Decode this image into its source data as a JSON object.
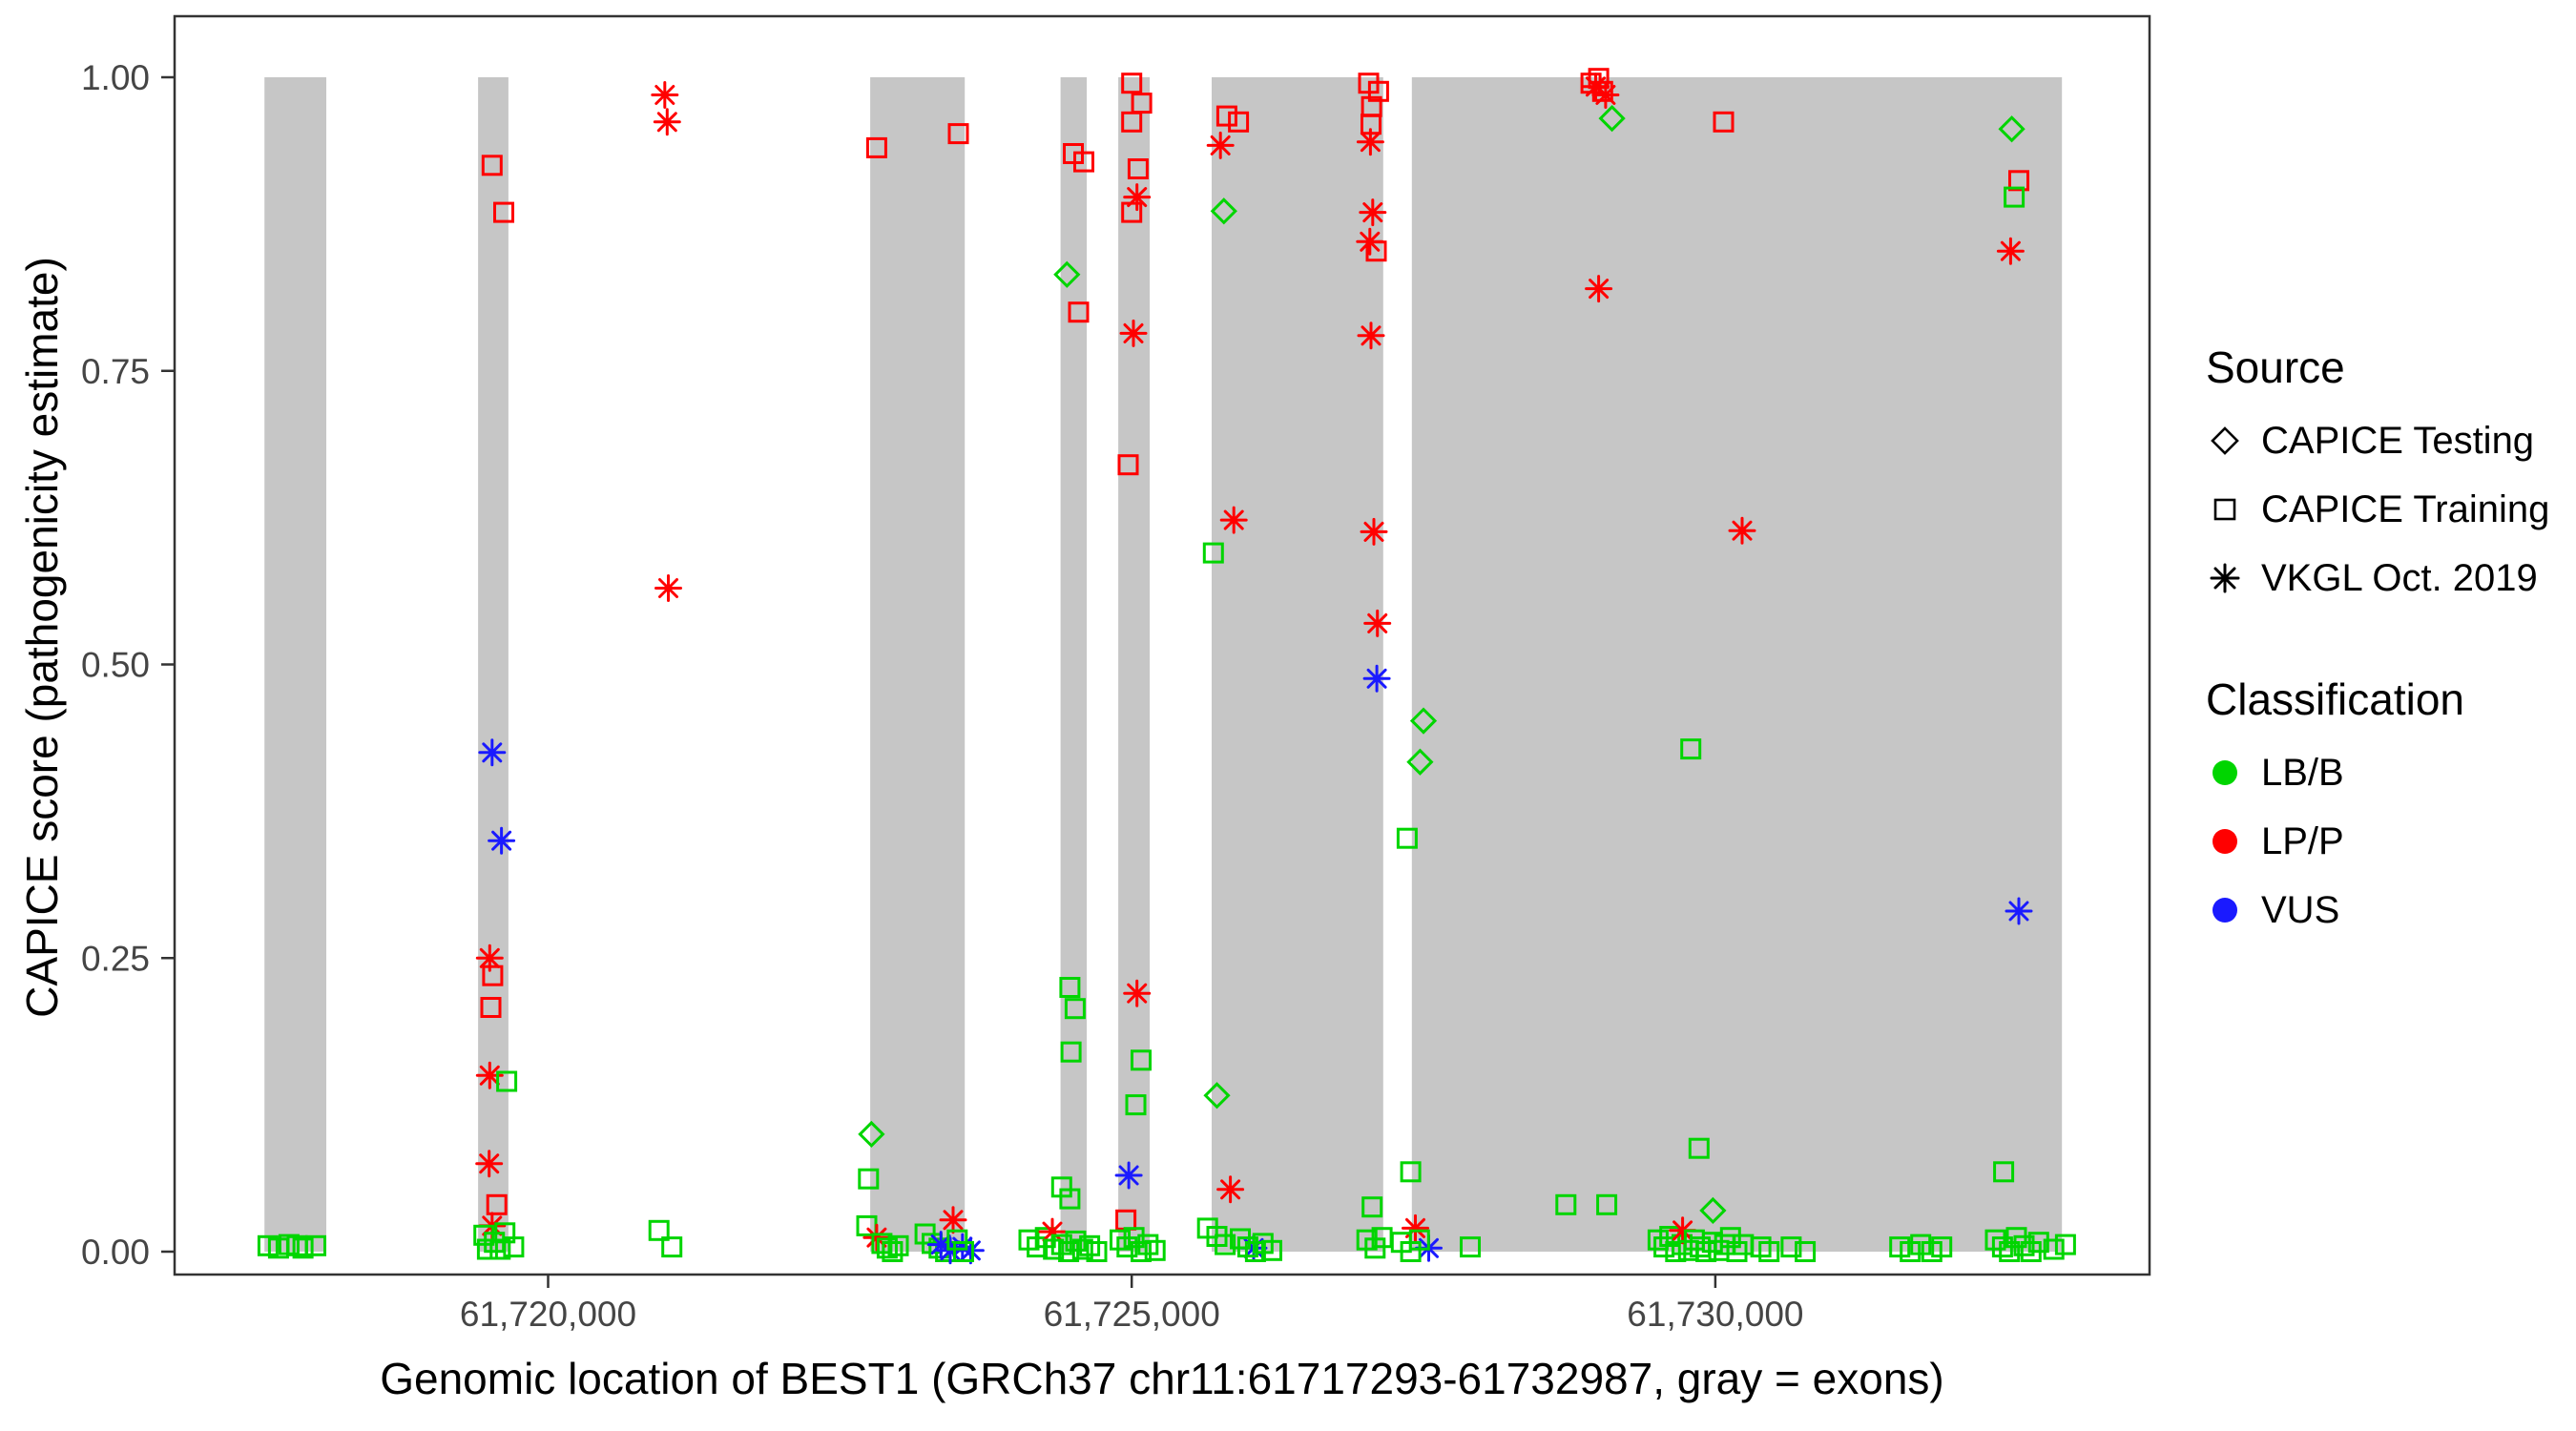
{
  "chart_data": {
    "type": "scatter",
    "title": "",
    "xlabel": "Genomic location of BEST1 (GRCh37 chr11:61717293-61732987, gray = exons)",
    "ylabel": "CAPICE score (pathogenicity estimate)",
    "x_domain": [
      61716800,
      61733720
    ],
    "y_domain": [
      0,
      1
    ],
    "grid": "off",
    "legend_position": "right",
    "legend_titles": {
      "source": "Source",
      "classification": "Classification"
    },
    "shape_legend": {
      "d": "CAPICE Testing",
      "s": "CAPICE Training",
      "a": "VKGL Oct. 2019"
    },
    "classes": {
      "g": {
        "label": "LB/B",
        "color": "#00D500"
      },
      "r": {
        "label": "LP/P",
        "color": "#FF0000"
      },
      "b": {
        "label": "VUS",
        "color": "#1A1AFF"
      }
    },
    "exon_color": "#C6C6C6",
    "exons": [
      [
        61717570,
        61718100
      ],
      [
        61719400,
        61719660
      ],
      [
        61722760,
        61723570
      ],
      [
        61724390,
        61724615
      ],
      [
        61724885,
        61725155
      ],
      [
        61725685,
        61727155
      ],
      [
        61727400,
        61732970
      ]
    ],
    "x_ticks": [
      {
        "value": 61720000,
        "label": "61,720,000"
      },
      {
        "value": 61725000,
        "label": "61,725,000"
      },
      {
        "value": 61730000,
        "label": "61,730,000"
      }
    ],
    "y_ticks": [
      {
        "value": 0.0,
        "label": "0.00"
      },
      {
        "value": 0.25,
        "label": "0.25"
      },
      {
        "value": 0.5,
        "label": "0.50"
      },
      {
        "value": 0.75,
        "label": "0.75"
      },
      {
        "value": 1.0,
        "label": "1.00"
      }
    ],
    "points_format": [
      "genomic_position",
      "capice_score",
      "shape s=square/Training d=diamond/Testing a=asterisk/VKGL",
      "class g=LB/B r=LP/P b=VUS"
    ],
    "points": [
      [
        61717600,
        0.005,
        "s",
        "g"
      ],
      [
        61717690,
        0.003,
        "s",
        "g"
      ],
      [
        61717780,
        0.006,
        "s",
        "g"
      ],
      [
        61717850,
        0.005,
        "s",
        "g"
      ],
      [
        61717900,
        0.003,
        "s",
        "g"
      ],
      [
        61718010,
        0.005,
        "s",
        "g"
      ],
      [
        61719520,
        0.925,
        "s",
        "r"
      ],
      [
        61719620,
        0.885,
        "s",
        "r"
      ],
      [
        61719520,
        0.425,
        "a",
        "b"
      ],
      [
        61719600,
        0.35,
        "a",
        "b"
      ],
      [
        61719500,
        0.25,
        "a",
        "r"
      ],
      [
        61719525,
        0.235,
        "s",
        "r"
      ],
      [
        61719510,
        0.208,
        "s",
        "r"
      ],
      [
        61719500,
        0.15,
        "a",
        "r"
      ],
      [
        61719645,
        0.145,
        "s",
        "g"
      ],
      [
        61719495,
        0.075,
        "a",
        "r"
      ],
      [
        61719560,
        0.04,
        "s",
        "r"
      ],
      [
        61719520,
        0.022,
        "a",
        "r"
      ],
      [
        61719450,
        0.014,
        "s",
        "g"
      ],
      [
        61719540,
        0.008,
        "s",
        "g"
      ],
      [
        61719630,
        0.016,
        "s",
        "g"
      ],
      [
        61719705,
        0.004,
        "s",
        "g"
      ],
      [
        61719480,
        0.002,
        "s",
        "g"
      ],
      [
        61719590,
        0.002,
        "s",
        "g"
      ],
      [
        61721000,
        0.985,
        "a",
        "r"
      ],
      [
        61721020,
        0.962,
        "a",
        "r"
      ],
      [
        61721030,
        0.565,
        "a",
        "r"
      ],
      [
        61720950,
        0.018,
        "s",
        "g"
      ],
      [
        61721060,
        0.004,
        "s",
        "g"
      ],
      [
        61722815,
        0.94,
        "s",
        "r"
      ],
      [
        61723515,
        0.952,
        "s",
        "r"
      ],
      [
        61722770,
        0.1,
        "d",
        "g"
      ],
      [
        61722745,
        0.062,
        "s",
        "g"
      ],
      [
        61722730,
        0.022,
        "s",
        "g"
      ],
      [
        61722815,
        0.012,
        "a",
        "r"
      ],
      [
        61722860,
        0.007,
        "s",
        "g"
      ],
      [
        61722905,
        0.003,
        "s",
        "g"
      ],
      [
        61722950,
        0.0,
        "s",
        "g"
      ],
      [
        61723000,
        0.005,
        "s",
        "g"
      ],
      [
        61723230,
        0.015,
        "s",
        "g"
      ],
      [
        61723290,
        0.007,
        "s",
        "g"
      ],
      [
        61723350,
        0.003,
        "s",
        "g"
      ],
      [
        61723405,
        0.0,
        "s",
        "g"
      ],
      [
        61723470,
        0.027,
        "a",
        "r"
      ],
      [
        61723365,
        0.006,
        "a",
        "b"
      ],
      [
        61723445,
        0.001,
        "a",
        "b"
      ],
      [
        61723550,
        0.004,
        "a",
        "b"
      ],
      [
        61723620,
        0.001,
        "a",
        "b"
      ],
      [
        61723505,
        0.01,
        "s",
        "g"
      ],
      [
        61723560,
        0.0,
        "s",
        "g"
      ],
      [
        61724500,
        0.935,
        "s",
        "r"
      ],
      [
        61724590,
        0.928,
        "s",
        "r"
      ],
      [
        61724445,
        0.832,
        "d",
        "g"
      ],
      [
        61724545,
        0.8,
        "s",
        "r"
      ],
      [
        61724470,
        0.225,
        "s",
        "g"
      ],
      [
        61724515,
        0.207,
        "s",
        "g"
      ],
      [
        61724480,
        0.17,
        "s",
        "g"
      ],
      [
        61724400,
        0.055,
        "s",
        "g"
      ],
      [
        61724470,
        0.045,
        "s",
        "g"
      ],
      [
        61724120,
        0.01,
        "s",
        "g"
      ],
      [
        61724190,
        0.004,
        "s",
        "g"
      ],
      [
        61724260,
        0.012,
        "s",
        "g"
      ],
      [
        61724320,
        0.017,
        "a",
        "r"
      ],
      [
        61724330,
        0.002,
        "s",
        "g"
      ],
      [
        61724400,
        0.006,
        "s",
        "g"
      ],
      [
        61724460,
        0.0,
        "s",
        "g"
      ],
      [
        61724520,
        0.009,
        "s",
        "g"
      ],
      [
        61724580,
        0.002,
        "s",
        "g"
      ],
      [
        61724640,
        0.005,
        "s",
        "g"
      ],
      [
        61724700,
        0.0,
        "s",
        "g"
      ],
      [
        61725000,
        0.995,
        "s",
        "r"
      ],
      [
        61725085,
        0.978,
        "s",
        "r"
      ],
      [
        61725000,
        0.962,
        "s",
        "r"
      ],
      [
        61725055,
        0.922,
        "s",
        "r"
      ],
      [
        61725045,
        0.898,
        "a",
        "r"
      ],
      [
        61725000,
        0.885,
        "s",
        "r"
      ],
      [
        61725015,
        0.782,
        "a",
        "r"
      ],
      [
        61724970,
        0.67,
        "s",
        "r"
      ],
      [
        61725045,
        0.22,
        "a",
        "r"
      ],
      [
        61725080,
        0.163,
        "s",
        "g"
      ],
      [
        61725035,
        0.125,
        "s",
        "g"
      ],
      [
        61724975,
        0.065,
        "a",
        "b"
      ],
      [
        61724950,
        0.027,
        "s",
        "r"
      ],
      [
        61724900,
        0.01,
        "s",
        "g"
      ],
      [
        61724960,
        0.004,
        "s",
        "g"
      ],
      [
        61725020,
        0.012,
        "s",
        "g"
      ],
      [
        61725080,
        0.0,
        "s",
        "g"
      ],
      [
        61725140,
        0.006,
        "s",
        "g"
      ],
      [
        61725200,
        0.001,
        "s",
        "g"
      ],
      [
        61725815,
        0.967,
        "s",
        "r"
      ],
      [
        61725915,
        0.962,
        "s",
        "r"
      ],
      [
        61725760,
        0.942,
        "a",
        "r"
      ],
      [
        61725790,
        0.886,
        "d",
        "g"
      ],
      [
        61725875,
        0.623,
        "a",
        "r"
      ],
      [
        61725700,
        0.595,
        "s",
        "g"
      ],
      [
        61725730,
        0.133,
        "d",
        "g"
      ],
      [
        61725845,
        0.053,
        "a",
        "r"
      ],
      [
        61725650,
        0.02,
        "s",
        "g"
      ],
      [
        61725730,
        0.013,
        "s",
        "g"
      ],
      [
        61725800,
        0.006,
        "s",
        "g"
      ],
      [
        61726045,
        0.003,
        "a",
        "b"
      ],
      [
        61725930,
        0.011,
        "s",
        "g"
      ],
      [
        61725995,
        0.004,
        "s",
        "g"
      ],
      [
        61726060,
        0.0,
        "s",
        "g"
      ],
      [
        61726125,
        0.007,
        "s",
        "g"
      ],
      [
        61726200,
        0.001,
        "s",
        "g"
      ],
      [
        61727030,
        0.995,
        "s",
        "r"
      ],
      [
        61727115,
        0.988,
        "s",
        "r"
      ],
      [
        61727055,
        0.975,
        "s",
        "r"
      ],
      [
        61727050,
        0.96,
        "s",
        "r"
      ],
      [
        61727045,
        0.945,
        "a",
        "r"
      ],
      [
        61727065,
        0.885,
        "a",
        "r"
      ],
      [
        61727040,
        0.86,
        "a",
        "r"
      ],
      [
        61727095,
        0.852,
        "s",
        "r"
      ],
      [
        61727050,
        0.78,
        "a",
        "r"
      ],
      [
        61727075,
        0.613,
        "a",
        "r"
      ],
      [
        61727105,
        0.535,
        "a",
        "r"
      ],
      [
        61727100,
        0.488,
        "a",
        "b"
      ],
      [
        61727060,
        0.038,
        "s",
        "g"
      ],
      [
        61727015,
        0.01,
        "s",
        "g"
      ],
      [
        61727085,
        0.003,
        "s",
        "g"
      ],
      [
        61727145,
        0.012,
        "s",
        "g"
      ],
      [
        61727500,
        0.452,
        "d",
        "g"
      ],
      [
        61727470,
        0.417,
        "d",
        "g"
      ],
      [
        61727360,
        0.352,
        "s",
        "g"
      ],
      [
        61727390,
        0.068,
        "s",
        "g"
      ],
      [
        61727430,
        0.02,
        "a",
        "r"
      ],
      [
        61727545,
        0.003,
        "a",
        "b"
      ],
      [
        61727310,
        0.008,
        "s",
        "g"
      ],
      [
        61727390,
        0.0,
        "s",
        "g"
      ],
      [
        61727465,
        0.01,
        "s",
        "g"
      ],
      [
        61727900,
        0.004,
        "s",
        "g"
      ],
      [
        61728935,
        0.995,
        "s",
        "r"
      ],
      [
        61729000,
        0.999,
        "s",
        "r"
      ],
      [
        61729035,
        0.988,
        "s",
        "r"
      ],
      [
        61728975,
        0.992,
        "a",
        "r"
      ],
      [
        61729060,
        0.985,
        "a",
        "r"
      ],
      [
        61729115,
        0.965,
        "d",
        "g"
      ],
      [
        61729000,
        0.82,
        "a",
        "r"
      ],
      [
        61728720,
        0.04,
        "s",
        "g"
      ],
      [
        61729070,
        0.04,
        "s",
        "g"
      ],
      [
        61730070,
        0.962,
        "s",
        "r"
      ],
      [
        61730230,
        0.614,
        "a",
        "r"
      ],
      [
        61729790,
        0.428,
        "s",
        "g"
      ],
      [
        61729860,
        0.088,
        "s",
        "g"
      ],
      [
        61729510,
        0.01,
        "s",
        "g"
      ],
      [
        61729560,
        0.004,
        "s",
        "g"
      ],
      [
        61729610,
        0.013,
        "s",
        "g"
      ],
      [
        61729660,
        0.0,
        "s",
        "g"
      ],
      [
        61729715,
        0.006,
        "s",
        "g"
      ],
      [
        61729720,
        0.018,
        "a",
        "r"
      ],
      [
        61729770,
        0.001,
        "s",
        "g"
      ],
      [
        61729820,
        0.01,
        "s",
        "g"
      ],
      [
        61729870,
        0.004,
        "s",
        "g"
      ],
      [
        61729920,
        0.0,
        "s",
        "g"
      ],
      [
        61729975,
        0.008,
        "s",
        "g"
      ],
      [
        61729980,
        0.035,
        "d",
        "g"
      ],
      [
        61730030,
        0.001,
        "s",
        "g"
      ],
      [
        61730080,
        0.006,
        "s",
        "g"
      ],
      [
        61730130,
        0.012,
        "s",
        "g"
      ],
      [
        61730185,
        0.0,
        "s",
        "g"
      ],
      [
        61730240,
        0.006,
        "s",
        "g"
      ],
      [
        61730390,
        0.004,
        "s",
        "g"
      ],
      [
        61730460,
        0.0,
        "s",
        "g"
      ],
      [
        61730650,
        0.004,
        "s",
        "g"
      ],
      [
        61730770,
        0.0,
        "s",
        "g"
      ],
      [
        61731580,
        0.004,
        "s",
        "g"
      ],
      [
        61731670,
        0.0,
        "s",
        "g"
      ],
      [
        61731760,
        0.006,
        "s",
        "g"
      ],
      [
        61731855,
        0.0,
        "s",
        "g"
      ],
      [
        61731940,
        0.004,
        "s",
        "g"
      ],
      [
        61732540,
        0.956,
        "d",
        "g"
      ],
      [
        61732600,
        0.912,
        "s",
        "r"
      ],
      [
        61732560,
        0.898,
        "s",
        "g"
      ],
      [
        61732530,
        0.852,
        "a",
        "r"
      ],
      [
        61732600,
        0.29,
        "a",
        "b"
      ],
      [
        61732470,
        0.068,
        "s",
        "g"
      ],
      [
        61732400,
        0.01,
        "s",
        "g"
      ],
      [
        61732460,
        0.004,
        "s",
        "g"
      ],
      [
        61732520,
        0.0,
        "s",
        "g"
      ],
      [
        61732580,
        0.012,
        "s",
        "g"
      ],
      [
        61732645,
        0.005,
        "s",
        "g"
      ],
      [
        61732705,
        0.0,
        "s",
        "g"
      ],
      [
        61732770,
        0.008,
        "s",
        "g"
      ],
      [
        61732900,
        0.002,
        "s",
        "g"
      ],
      [
        61733000,
        0.006,
        "s",
        "g"
      ]
    ]
  }
}
